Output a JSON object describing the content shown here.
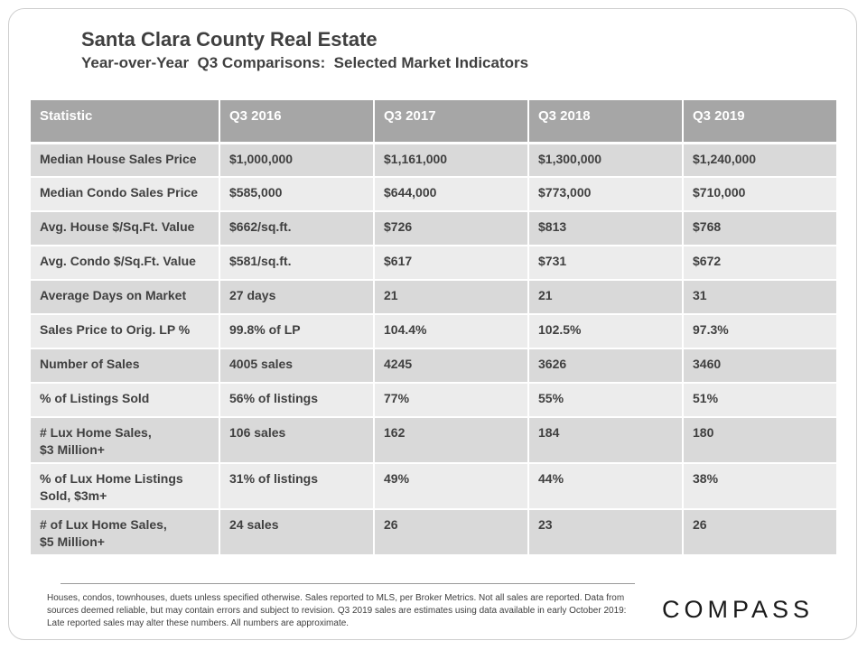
{
  "header": {
    "title": "Santa Clara County Real Estate",
    "subtitle": "Year-over-Year  Q3 Comparisons:  Selected Market Indicators"
  },
  "table": {
    "columns": [
      "Statistic",
      "Q3 2016",
      "Q3 2017",
      "Q3 2018",
      "Q3 2019"
    ],
    "rows": [
      [
        "Median House Sales Price",
        "$1,000,000",
        "$1,161,000",
        "$1,300,000",
        "$1,240,000"
      ],
      [
        "Median Condo Sales Price",
        "$585,000",
        "$644,000",
        "$773,000",
        "$710,000"
      ],
      [
        "Avg. House $/Sq.Ft. Value",
        "$662/sq.ft.",
        "$726",
        "$813",
        "$768"
      ],
      [
        "Avg. Condo $/Sq.Ft. Value",
        "$581/sq.ft.",
        "$617",
        "$731",
        "$672"
      ],
      [
        "Average Days on Market",
        "27 days",
        "21",
        "21",
        "31"
      ],
      [
        "Sales Price to Orig. LP %",
        "99.8% of LP",
        "104.4%",
        "102.5%",
        "97.3%"
      ],
      [
        "Number of Sales",
        "4005 sales",
        "4245",
        "3626",
        "3460"
      ],
      [
        "% of Listings Sold",
        "56% of listings",
        "77%",
        "55%",
        "51%"
      ],
      [
        "# Lux Home Sales,\n$3 Million+",
        "106 sales",
        "162",
        "184",
        "180"
      ],
      [
        "% of Lux Home Listings\nSold, $3m+",
        "31% of listings",
        "49%",
        "44%",
        "38%"
      ],
      [
        "# of Lux Home Sales,\n$5 Million+",
        "24 sales",
        "26",
        "23",
        "26"
      ]
    ]
  },
  "footer": {
    "note": "Houses, condos, townhouses, duets unless specified otherwise. Sales reported to MLS, per Broker Metrics. Not all sales are reported. Data from sources deemed reliable, but may contain errors and subject to revision. Q3 2019 sales are estimates using data available in early October 2019: Late reported sales may alter these numbers. All numbers are approximate.",
    "logo_text": "COMPASS"
  }
}
